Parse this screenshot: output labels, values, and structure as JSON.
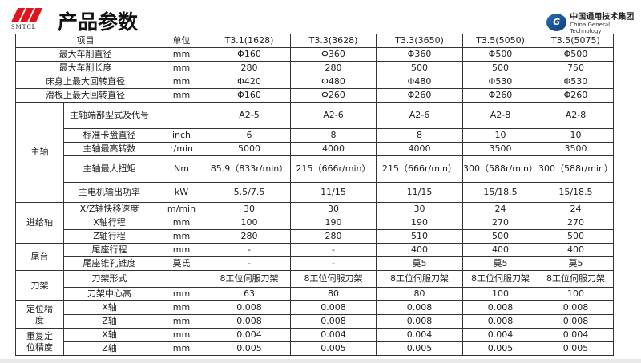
{
  "header": {
    "title": "产品参数",
    "brand_logo_text": "SMTCL",
    "partner_cn": "中国通用技术集团",
    "partner_en": "China General Technology"
  },
  "table": {
    "columns": [
      "项目",
      "单位",
      "T3.1(1628)",
      "T3.3(3628)",
      "T3.3(3650)",
      "T3.5(5050)",
      "T3.5(5075)"
    ],
    "rows": [
      {
        "item": "最大车削直径",
        "unit": "mm",
        "values": [
          "Φ160",
          "Φ360",
          "Φ360",
          "Φ500",
          "Φ500"
        ]
      },
      {
        "item": "最大车削长度",
        "unit": "mm",
        "values": [
          "280",
          "280",
          "500",
          "500",
          "750"
        ]
      },
      {
        "item": "床身上最大回转直径",
        "unit": "mm",
        "values": [
          "Φ420",
          "Φ480",
          "Φ480",
          "Φ530",
          "Φ530"
        ]
      },
      {
        "item": "滑板上最大回转直径",
        "unit": "mm",
        "values": [
          "Φ160",
          "Φ260",
          "Φ260",
          "Φ260",
          "Φ260"
        ]
      }
    ],
    "groups": [
      {
        "name": "主轴",
        "rows": [
          {
            "item": "主轴端部型式及代号",
            "unit": "",
            "values": [
              "A2-5",
              "A2-6",
              "A2-6",
              "A2-8",
              "A2-8"
            ]
          },
          {
            "item": "标准卡盘直径",
            "unit": "inch",
            "values": [
              "6",
              "8",
              "8",
              "10",
              "10"
            ]
          },
          {
            "item": "主轴最高转数",
            "unit": "r/min",
            "values": [
              "5000",
              "4000",
              "4000",
              "3500",
              "3500"
            ]
          },
          {
            "item": "主轴最大扭矩",
            "unit": "Nm",
            "values": [
              "85.9（833r/min）",
              "215（666r/min）",
              "215（666r/min）",
              "300（588r/min）",
              "300（588r/min）"
            ]
          },
          {
            "item": "主电机输出功率",
            "unit": "kW",
            "values": [
              "5.5/7.5",
              "11/15",
              "11/15",
              "15/18.5",
              "15/18.5"
            ]
          }
        ]
      },
      {
        "name": "进给轴",
        "rows": [
          {
            "item": "X/Z轴快移速度",
            "unit": "m/min",
            "values": [
              "30",
              "30",
              "30",
              "24",
              "24"
            ]
          },
          {
            "item": "X轴行程",
            "unit": "mm",
            "values": [
              "100",
              "190",
              "190",
              "270",
              "270"
            ]
          },
          {
            "item": "Z轴行程",
            "unit": "mm",
            "values": [
              "280",
              "280",
              "510",
              "500",
              "500"
            ]
          }
        ]
      },
      {
        "name": "尾台",
        "rows": [
          {
            "item": "尾座行程",
            "unit": "mm",
            "values": [
              "-",
              "-",
              "400",
              "400",
              "400"
            ]
          },
          {
            "item": "尾座锥孔锥度",
            "unit": "莫氏",
            "values": [
              "-",
              "-",
              "莫5",
              "莫5",
              "莫5"
            ]
          }
        ]
      },
      {
        "name": "刀架",
        "rows": [
          {
            "item": "刀架形式",
            "unit": "",
            "values": [
              "8工位伺服刀架",
              "8工位伺服刀架",
              "8工位伺服刀架",
              "8工位伺服刀架",
              "8工位伺服刀架"
            ]
          },
          {
            "item": "刀架中心高",
            "unit": "mm",
            "values": [
              "63",
              "80",
              "80",
              "100",
              "100"
            ]
          }
        ]
      },
      {
        "name": "定位精度",
        "rows": [
          {
            "item": "X轴",
            "unit": "mm",
            "values": [
              "0.008",
              "0.008",
              "0.008",
              "0.008",
              "0.008"
            ]
          },
          {
            "item": "Z轴",
            "unit": "mm",
            "values": [
              "0.008",
              "0.008",
              "0.008",
              "0.008",
              "0.008"
            ]
          }
        ]
      },
      {
        "name": "重复定位精度",
        "rows": [
          {
            "item": "X轴",
            "unit": "mm",
            "values": [
              "0.004",
              "0.004",
              "0.004",
              "0.004",
              "0.004"
            ]
          },
          {
            "item": "Z轴",
            "unit": "mm",
            "values": [
              "0.005",
              "0.005",
              "0.005",
              "0.005",
              "0.005"
            ]
          }
        ]
      }
    ]
  },
  "colors": {
    "brand_red": "#e0141e",
    "partner_blue": "#1f5aa0"
  }
}
